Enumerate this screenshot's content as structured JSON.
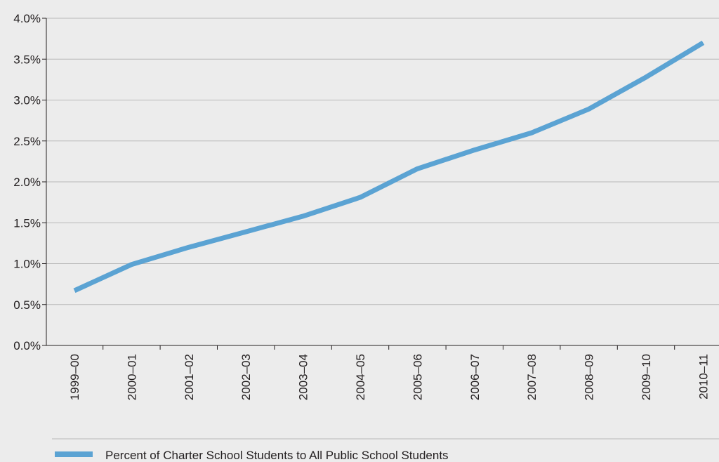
{
  "chart_data": {
    "type": "line",
    "categories": [
      "1999–00",
      "2000–01",
      "2001–02",
      "2002–03",
      "2003–04",
      "2004–05",
      "2005–06",
      "2006–07",
      "2007–08",
      "2008–09",
      "2009–10",
      "2010–11"
    ],
    "series": [
      {
        "name": "Percent of Charter School Students to All Public School Students",
        "values": [
          0.67,
          0.99,
          1.2,
          1.39,
          1.58,
          1.81,
          2.16,
          2.39,
          2.6,
          2.89,
          3.28,
          3.7
        ],
        "color": "#5ba3d3"
      }
    ],
    "ylim": [
      0,
      4.0
    ],
    "yticks": [
      0,
      0.5,
      1.0,
      1.5,
      2.0,
      2.5,
      3.0,
      3.5,
      4.0
    ],
    "ytick_labels": [
      "0.0%",
      "0.5%",
      "1.0%",
      "1.5%",
      "2.0%",
      "2.5%",
      "3.0%",
      "3.5%",
      "4.0%"
    ],
    "grid": true,
    "legend_position": "bottom-left",
    "title": "",
    "xlabel": "",
    "ylabel": ""
  }
}
